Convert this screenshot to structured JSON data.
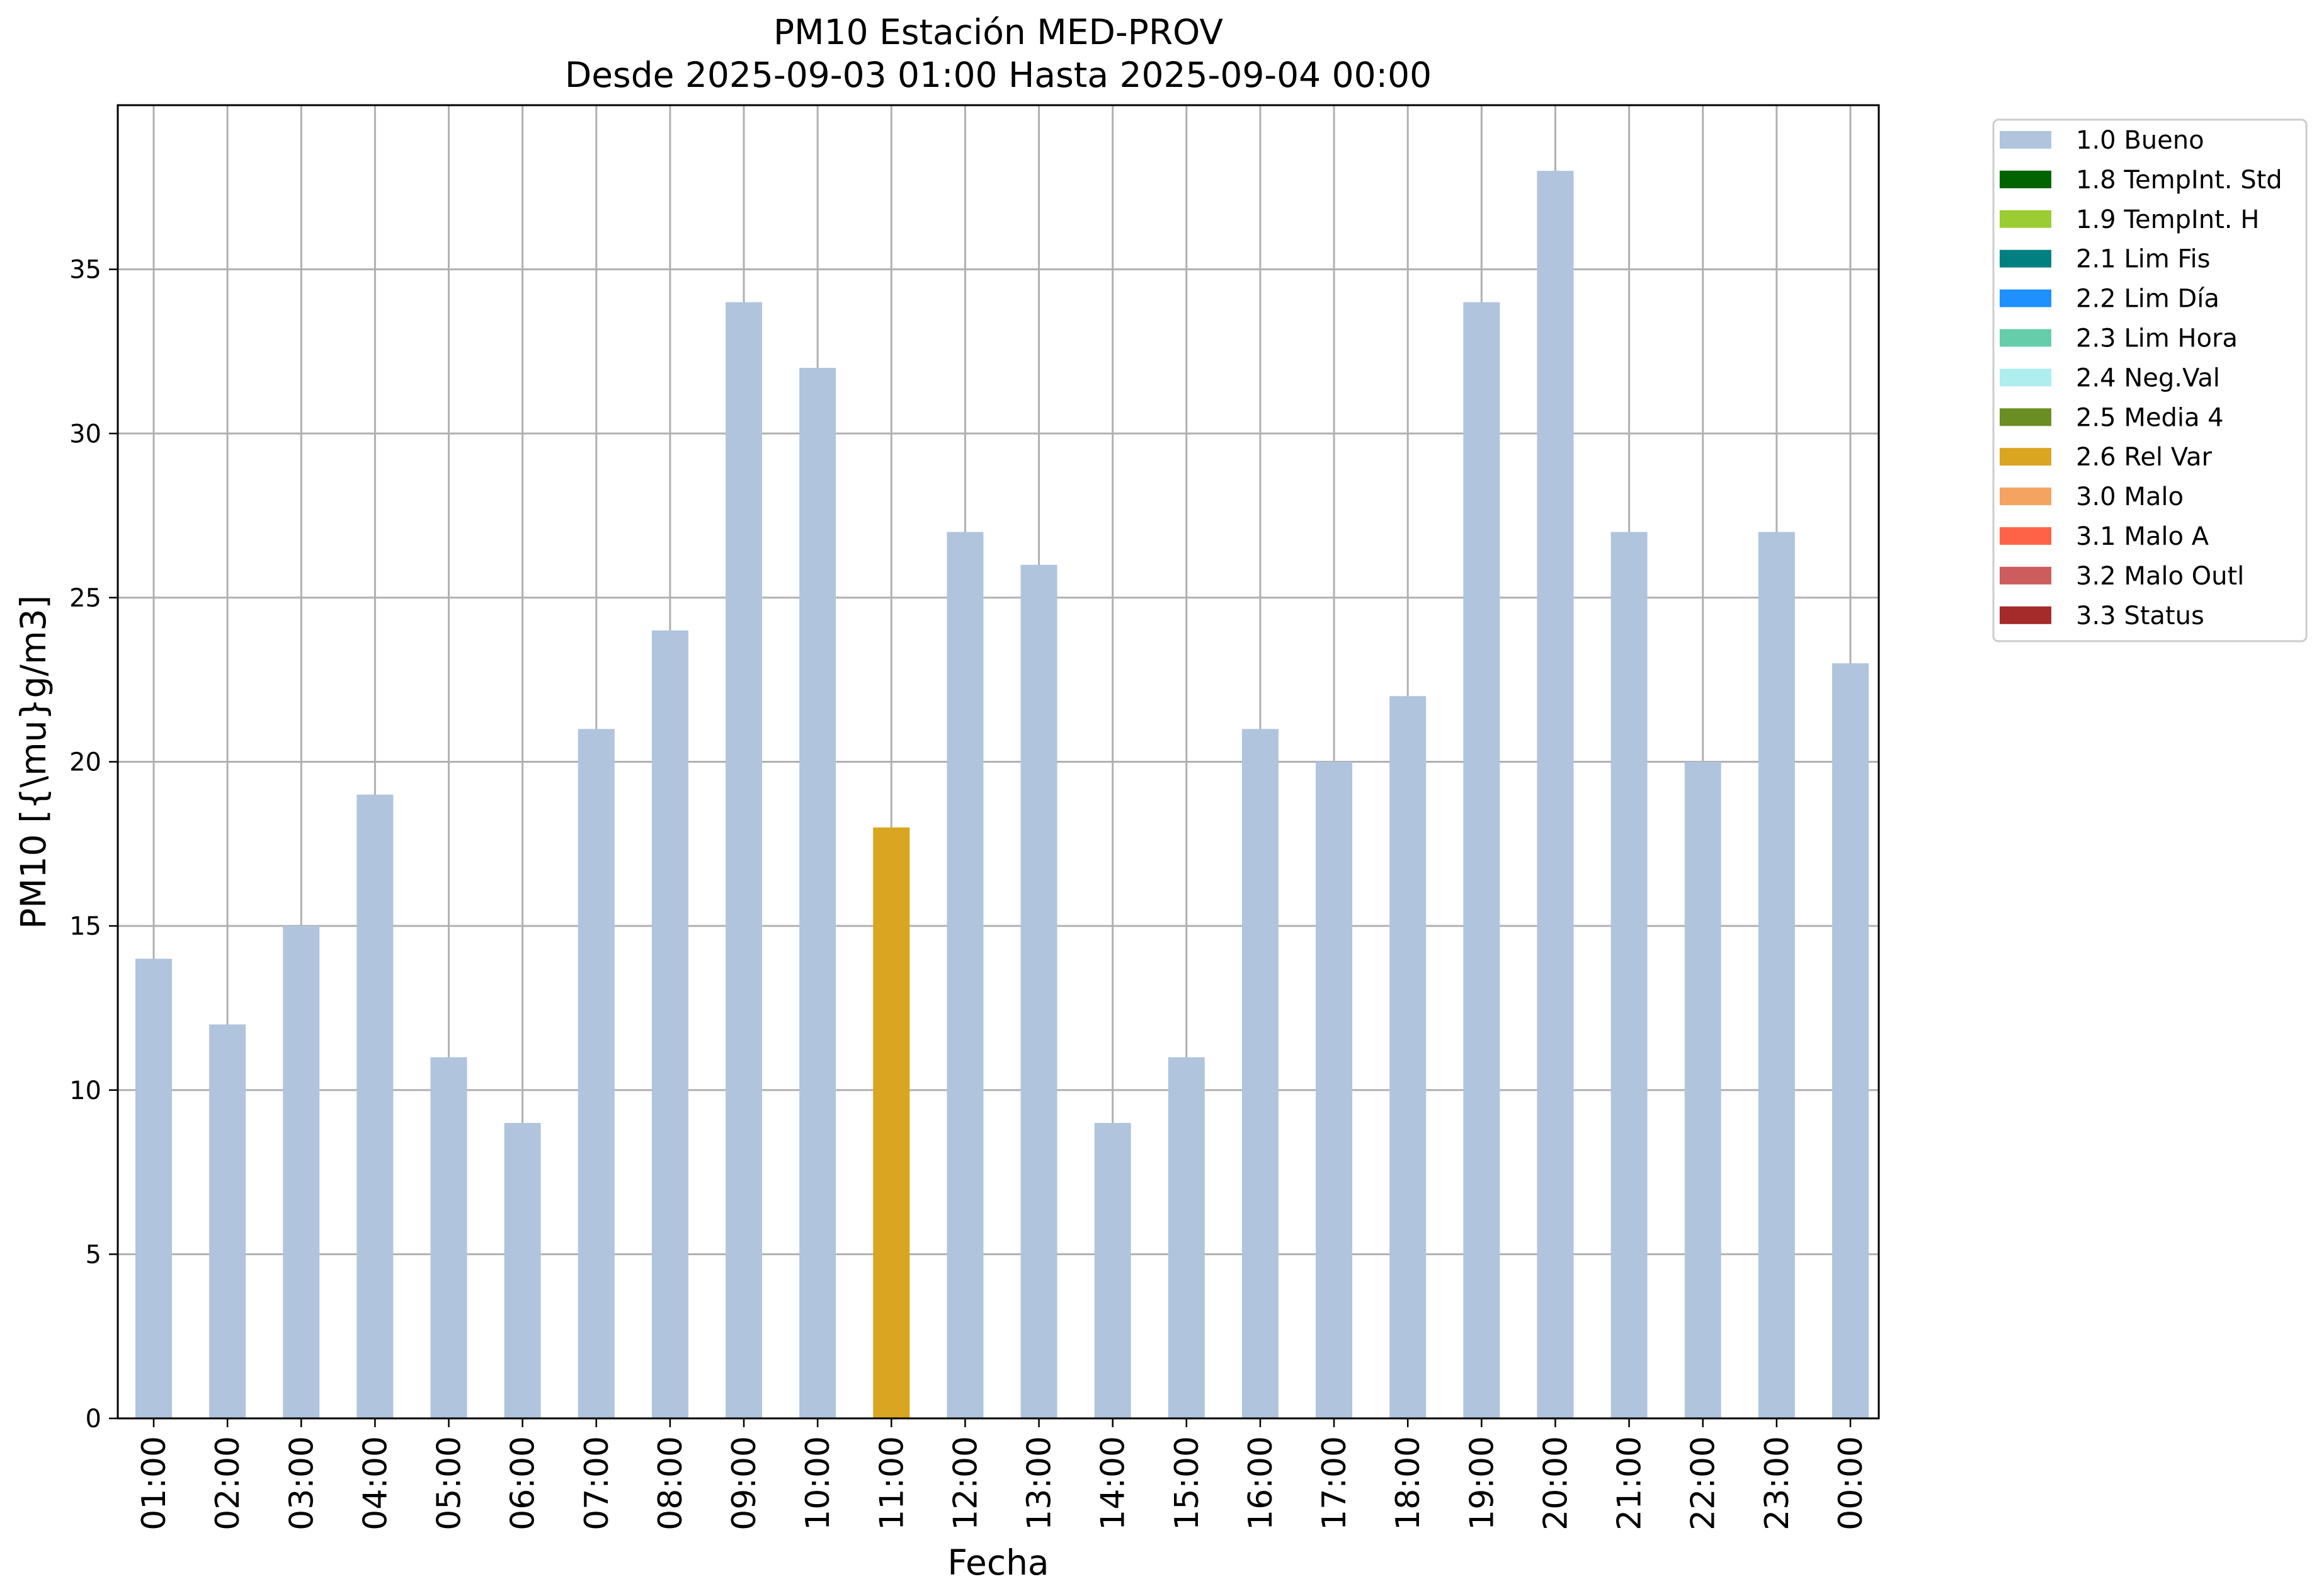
{
  "chart_data": {
    "type": "bar",
    "title": "PM10 Estación MED-PROV",
    "subtitle": "Desde 2025-09-03 01:00 Hasta 2025-09-04 00:00",
    "xlabel": "Fecha",
    "ylabel": "PM10 [{\\mu}g/m3]",
    "ylim": [
      0,
      40
    ],
    "yticks": [
      0,
      5,
      10,
      15,
      20,
      25,
      30,
      35
    ],
    "grid": true,
    "legend_position": "outside upper right",
    "categories": [
      "01:00",
      "02:00",
      "03:00",
      "04:00",
      "05:00",
      "06:00",
      "07:00",
      "08:00",
      "09:00",
      "10:00",
      "11:00",
      "12:00",
      "13:00",
      "14:00",
      "15:00",
      "16:00",
      "17:00",
      "18:00",
      "19:00",
      "20:00",
      "21:00",
      "22:00",
      "23:00",
      "00:00"
    ],
    "values": [
      14,
      12,
      15,
      19,
      11,
      9,
      21,
      24,
      34,
      32,
      18,
      27,
      26,
      9,
      11,
      21,
      20,
      22,
      34,
      38,
      27,
      20,
      27,
      23
    ],
    "flags": [
      "1.0 Bueno",
      "1.0 Bueno",
      "1.0 Bueno",
      "1.0 Bueno",
      "1.0 Bueno",
      "1.0 Bueno",
      "1.0 Bueno",
      "1.0 Bueno",
      "1.0 Bueno",
      "1.0 Bueno",
      "2.6 Rel Var",
      "1.0 Bueno",
      "1.0 Bueno",
      "1.0 Bueno",
      "1.0 Bueno",
      "1.0 Bueno",
      "1.0 Bueno",
      "1.0 Bueno",
      "1.0 Bueno",
      "1.0 Bueno",
      "1.0 Bueno",
      "1.0 Bueno",
      "1.0 Bueno",
      "1.0 Bueno"
    ],
    "legend": [
      {
        "label": "1.0 Bueno",
        "color": "#b0c4de"
      },
      {
        "label": "1.8 TempInt. Std",
        "color": "#006400"
      },
      {
        "label": "1.9 TempInt. H",
        "color": "#9acd32"
      },
      {
        "label": "2.1 Lim Fis",
        "color": "#008080"
      },
      {
        "label": "2.2 Lim Día",
        "color": "#1e90ff"
      },
      {
        "label": "2.3 Lim Hora",
        "color": "#66cdaa"
      },
      {
        "label": "2.4 Neg.Val",
        "color": "#afeeee"
      },
      {
        "label": "2.5 Media 4",
        "color": "#6b8e23"
      },
      {
        "label": "2.6 Rel Var",
        "color": "#daa520"
      },
      {
        "label": "3.0 Malo",
        "color": "#f4a460"
      },
      {
        "label": "3.1 Malo A",
        "color": "#ff6347"
      },
      {
        "label": "3.2 Malo Outl",
        "color": "#cd5c5c"
      },
      {
        "label": "3.3 Status",
        "color": "#a52a2a"
      }
    ]
  }
}
